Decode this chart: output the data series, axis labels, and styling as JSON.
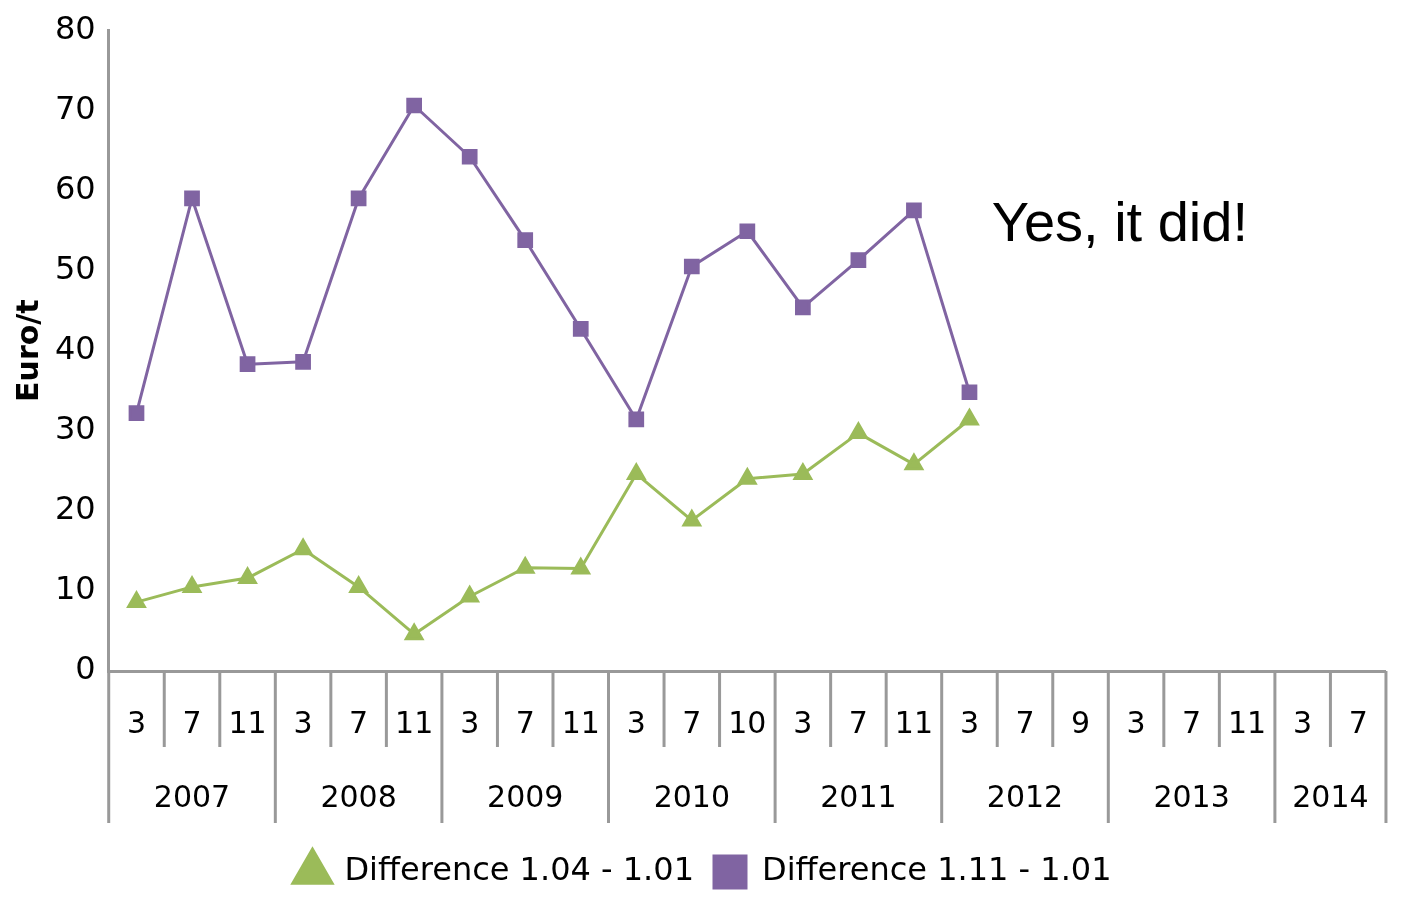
{
  "chart_data": {
    "type": "line",
    "ylabel": "Euro/t",
    "categories": [
      "3",
      "7",
      "11",
      "3",
      "7",
      "11",
      "3",
      "7",
      "11",
      "3",
      "7",
      "10",
      "3",
      "7",
      "11",
      "3",
      "7",
      "9",
      "3",
      "7",
      "11",
      "3",
      "7"
    ],
    "annotations": [
      "Yes, it did!",
      "2007",
      "2008",
      "2009",
      "2010",
      "2011",
      "2012",
      "2013",
      "2014"
    ],
    "series": [
      {
        "name": "Difference 1.04 - 1.01",
        "color": "#9bbb59",
        "marker": "triangle",
        "values": [
          8.6,
          10.5,
          11.6,
          15.2,
          10.5,
          4.6,
          9.3,
          12.9,
          12.8,
          24.6,
          18.8,
          24.0,
          24.6,
          29.7,
          25.8,
          31.4,
          null,
          null,
          null,
          null,
          null,
          null,
          null
        ]
      },
      {
        "name": "Difference 1.11 - 1.01",
        "color": "#8064a2",
        "marker": "square",
        "values": [
          32.2,
          59.0,
          38.3,
          38.6,
          59.0,
          70.6,
          64.2,
          53.8,
          42.7,
          31.4,
          50.5,
          54.9,
          45.4,
          51.3,
          57.5,
          34.8,
          null,
          null,
          null,
          null,
          null,
          null,
          null
        ]
      }
    ],
    "ylim": [
      0,
      80
    ],
    "yticks": [
      0,
      10,
      20,
      30,
      40,
      50,
      60,
      70,
      80
    ],
    "grid": false,
    "legend": "bottom",
    "line_style": "solid"
  }
}
